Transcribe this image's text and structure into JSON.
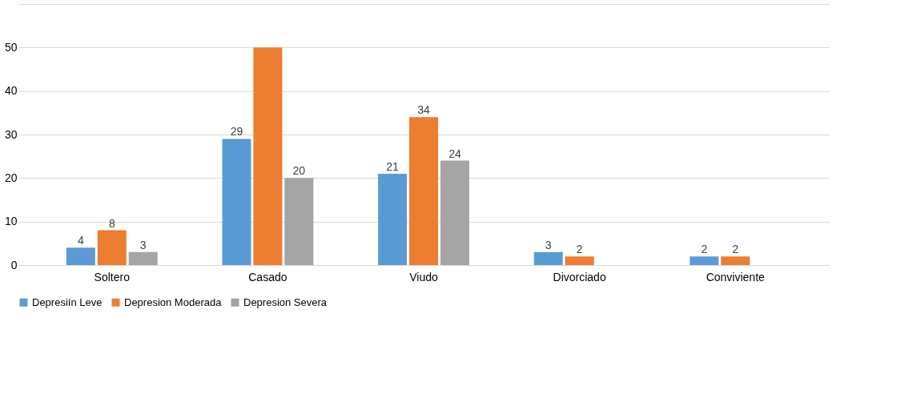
{
  "chart_data": {
    "type": "bar",
    "categories": [
      "Soltero",
      "Casado",
      "Viudo",
      "Divorciado",
      "Conviviente"
    ],
    "series": [
      {
        "name": "Depresiín Leve",
        "color": "#5b9bd5",
        "values": [
          4,
          29,
          21,
          3,
          2
        ],
        "value_labels": [
          "4",
          "29",
          "21",
          "3",
          "2"
        ]
      },
      {
        "name": "Depresion Moderada",
        "color": "#ed7d31",
        "values": [
          8,
          50,
          34,
          2,
          2
        ],
        "value_labels": [
          "8",
          null,
          "34",
          "2",
          "2"
        ]
      },
      {
        "name": "Depresion Severa",
        "color": "#a5a5a5",
        "values": [
          3,
          20,
          24,
          0,
          0
        ],
        "value_labels": [
          "3",
          "20",
          "24",
          null,
          null
        ]
      }
    ],
    "ylim": [
      0,
      60
    ],
    "yticks": [
      0,
      10,
      20,
      30,
      40,
      50,
      {
        "value": 60,
        "label": null
      }
    ],
    "grid": "y",
    "legend": "bottom"
  }
}
